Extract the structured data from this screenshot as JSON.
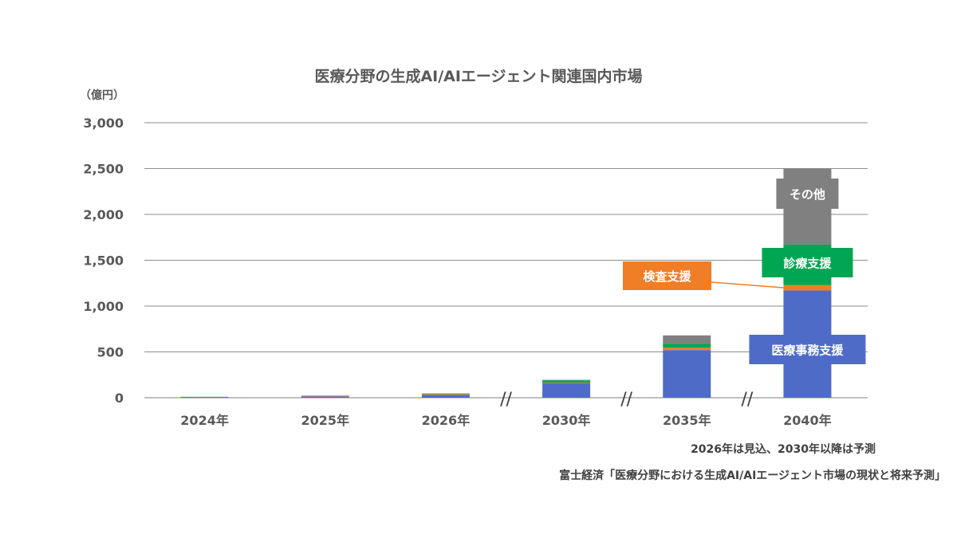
{
  "chart_data": {
    "type": "bar",
    "stacked": true,
    "title": "医療分野の生成AI/AIエージェント関連国内市場",
    "unit_label": "（億円）",
    "categories": [
      "2024年",
      "2025年",
      "2026年",
      "2030年",
      "2035年",
      "2040年"
    ],
    "axis_breaks_after": [
      "2026年",
      "2030年",
      "2035年"
    ],
    "axis_break_symbol": "//",
    "ylim": [
      0,
      3000
    ],
    "yticks": [
      0,
      500,
      1000,
      1500,
      2000,
      2500,
      3000
    ],
    "ytick_labels": [
      "0",
      "500",
      "1,000",
      "1,500",
      "2,000",
      "2,500",
      "3,000"
    ],
    "grid": true,
    "series": [
      {
        "name": "医療事務支援",
        "color": "#4f6bc8",
        "values": [
          8,
          15,
          30,
          160,
          520,
          1170
        ]
      },
      {
        "name": "検査支援",
        "color": "#f07e26",
        "values": [
          0,
          5,
          10,
          5,
          25,
          60
        ]
      },
      {
        "name": "診療支援",
        "color": "#00a651",
        "values": [
          1,
          2,
          4,
          25,
          45,
          440
        ]
      },
      {
        "name": "その他",
        "color": "#808080",
        "values": [
          1,
          2,
          4,
          5,
          90,
          830
        ]
      }
    ],
    "callouts": [
      {
        "label": "その他",
        "color": "#808080"
      },
      {
        "label": "診療支援",
        "color": "#00a651"
      },
      {
        "label": "検査支援",
        "color": "#f07e26"
      },
      {
        "label": "医療事務支援",
        "color": "#4f6bc8"
      }
    ],
    "note": "2026年は見込、2030年以降は予測",
    "source": "富士経済「医療分野における生成AI/AIエージェント市場の現状と将来予測」"
  }
}
